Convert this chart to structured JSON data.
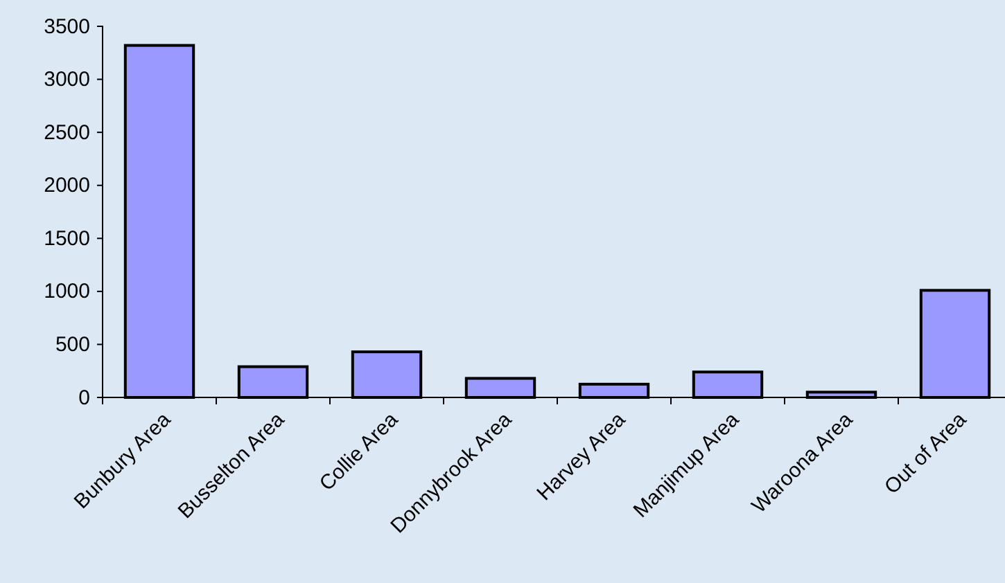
{
  "chart_data": {
    "type": "bar",
    "categories": [
      "Bunbury Area",
      "Busselton Area",
      "Collie Area",
      "Donnybrook Area",
      "Harvey Area",
      "Manjimup Area",
      "Waroona Area",
      "Out of Area"
    ],
    "values": [
      3320,
      290,
      430,
      180,
      125,
      240,
      50,
      1010
    ],
    "color": "#9999ff",
    "ylim": [
      0,
      3500
    ],
    "yticks": [
      0,
      500,
      1000,
      1500,
      2000,
      2500,
      3000,
      3500
    ],
    "grid": false
  }
}
